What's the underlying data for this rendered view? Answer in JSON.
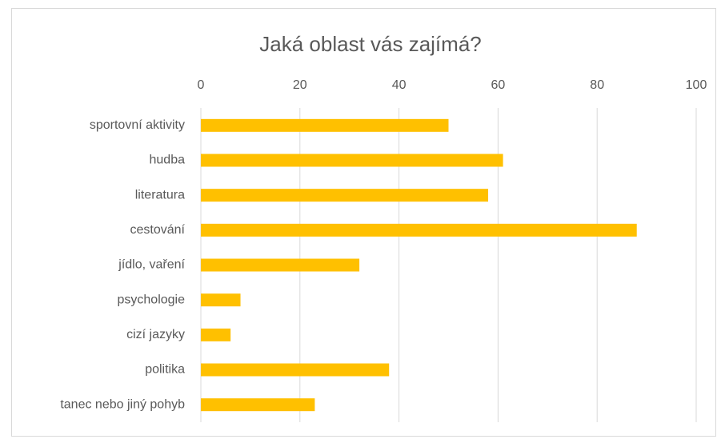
{
  "chart_data": {
    "type": "bar",
    "orientation": "horizontal",
    "title": "Jaká oblast vás zajímá?",
    "categories": [
      "sportovní aktivity",
      "hudba",
      "literatura",
      "cestování",
      "jídlo, vaření",
      "psychologie",
      "cizí jazyky",
      "politika",
      "tanec nebo jiný pohyb"
    ],
    "values": [
      50,
      61,
      58,
      88,
      32,
      8,
      6,
      38,
      23
    ],
    "color": "#ffc000",
    "xlim": [
      0,
      100
    ],
    "xticks": [
      0,
      20,
      40,
      60,
      80,
      100
    ],
    "grid": true
  }
}
